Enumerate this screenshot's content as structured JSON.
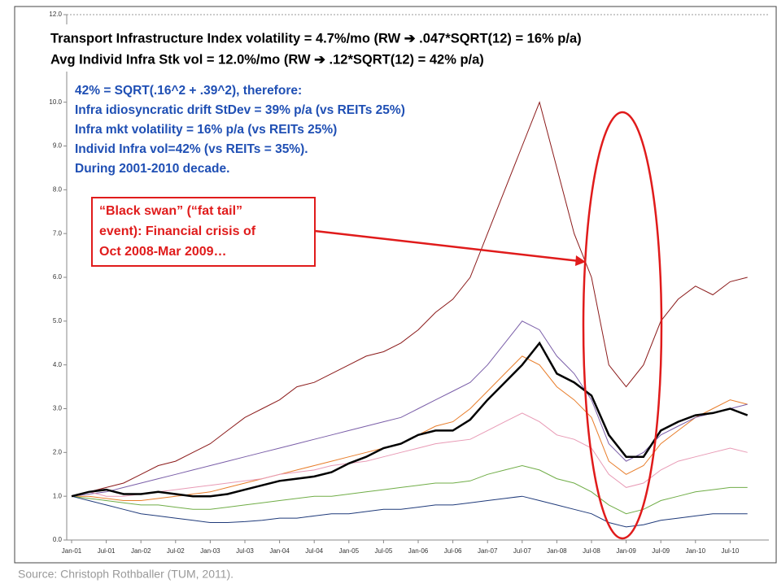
{
  "chart_data": {
    "type": "line",
    "titles": [
      "Transport Infrastructure Index volatility = 4.7%/mo (RW ➔ .047*SQRT(12) = 16% p/a)",
      "Avg Individ Infra Stk vol = 12.0%/mo (RW ➔ .12*SQRT(12) = 42% p/a)"
    ],
    "notes": [
      "42% = SQRT(.16^2 + .39^2), therefore:",
      "Infra idiosyncratic drift StDev = 39% p/a (vs REITs 25%)",
      "Infra mkt volatility = 16% p/a (vs REITs 25%)",
      "Individ Infra vol=42% (vs REITs = 35%).",
      "During 2001-2010 decade."
    ],
    "callout": [
      "“Black swan” (“fat tail”",
      "event): Financial crisis of",
      "Oct 2008-Mar 2009…"
    ],
    "source": "Source: Christoph Rothballer (TUM, 2011).",
    "categories": [
      "Jan-01",
      null,
      "Jul-01",
      null,
      "Jan-02",
      null,
      "Jul-02",
      null,
      "Jan-03",
      null,
      "Jul-03",
      null,
      "Jan-04",
      null,
      "Jul-04",
      null,
      "Jan-05",
      null,
      "Jul-05",
      null,
      "Jan-06",
      null,
      "Jul-06",
      null,
      "Jan-07",
      null,
      "Jul-07",
      null,
      "Jan-08",
      null,
      "Jul-08",
      null,
      "Jan-09",
      null,
      "Jul-09",
      null,
      "Jan-10",
      null,
      "Jul-10",
      null
    ],
    "series": [
      {
        "color": "#8b1a1a",
        "values": [
          1.0,
          1.1,
          1.2,
          1.3,
          1.5,
          1.7,
          1.8,
          2.0,
          2.2,
          2.5,
          2.8,
          3.0,
          3.2,
          3.5,
          3.6,
          3.8,
          4.0,
          4.2,
          4.3,
          4.5,
          4.8,
          5.2,
          5.5,
          6.0,
          7.0,
          8.0,
          9.0,
          10.0,
          8.5,
          7.0,
          6.0,
          4.0,
          3.5,
          4.0,
          5.0,
          5.5,
          5.8,
          5.6,
          5.9,
          6.0
        ]
      },
      {
        "color": "#e87d2a",
        "values": [
          1.0,
          1.0,
          0.95,
          0.9,
          0.9,
          0.95,
          1.0,
          1.05,
          1.1,
          1.2,
          1.3,
          1.4,
          1.5,
          1.6,
          1.7,
          1.8,
          1.9,
          2.0,
          2.1,
          2.2,
          2.4,
          2.6,
          2.7,
          3.0,
          3.4,
          3.8,
          4.2,
          4.0,
          3.5,
          3.2,
          2.8,
          1.8,
          1.5,
          1.7,
          2.2,
          2.5,
          2.8,
          3.0,
          3.2,
          3.1
        ]
      },
      {
        "color": "#70ad47",
        "values": [
          1.0,
          0.95,
          0.9,
          0.85,
          0.8,
          0.8,
          0.75,
          0.7,
          0.7,
          0.75,
          0.8,
          0.85,
          0.9,
          0.95,
          1.0,
          1.0,
          1.05,
          1.1,
          1.15,
          1.2,
          1.25,
          1.3,
          1.3,
          1.35,
          1.5,
          1.6,
          1.7,
          1.6,
          1.4,
          1.3,
          1.1,
          0.8,
          0.6,
          0.7,
          0.9,
          1.0,
          1.1,
          1.15,
          1.2,
          1.2
        ]
      },
      {
        "color": "#1f3a7a",
        "values": [
          1.0,
          0.9,
          0.8,
          0.7,
          0.6,
          0.55,
          0.5,
          0.45,
          0.4,
          0.4,
          0.42,
          0.45,
          0.5,
          0.5,
          0.55,
          0.6,
          0.6,
          0.65,
          0.7,
          0.7,
          0.75,
          0.8,
          0.8,
          0.85,
          0.9,
          0.95,
          1.0,
          0.9,
          0.8,
          0.7,
          0.6,
          0.4,
          0.3,
          0.35,
          0.45,
          0.5,
          0.55,
          0.6,
          0.6,
          0.6
        ]
      },
      {
        "color": "#7a5ea8",
        "values": [
          1.0,
          1.05,
          1.1,
          1.2,
          1.3,
          1.4,
          1.5,
          1.6,
          1.7,
          1.8,
          1.9,
          2.0,
          2.1,
          2.2,
          2.3,
          2.4,
          2.5,
          2.6,
          2.7,
          2.8,
          3.0,
          3.2,
          3.4,
          3.6,
          4.0,
          4.5,
          5.0,
          4.8,
          4.2,
          3.8,
          3.2,
          2.2,
          1.8,
          2.0,
          2.4,
          2.6,
          2.8,
          2.9,
          3.0,
          3.1
        ]
      },
      {
        "color": "#e89ab5",
        "values": [
          1.0,
          1.1,
          1.0,
          1.0,
          1.05,
          1.1,
          1.15,
          1.2,
          1.25,
          1.3,
          1.35,
          1.4,
          1.5,
          1.55,
          1.6,
          1.7,
          1.75,
          1.8,
          1.9,
          2.0,
          2.1,
          2.2,
          2.25,
          2.3,
          2.5,
          2.7,
          2.9,
          2.7,
          2.4,
          2.3,
          2.1,
          1.5,
          1.2,
          1.3,
          1.6,
          1.8,
          1.9,
          2.0,
          2.1,
          2.0
        ]
      },
      {
        "color": "#000000",
        "line_width": 2.5,
        "values": [
          1.0,
          1.1,
          1.15,
          1.05,
          1.05,
          1.1,
          1.05,
          1.0,
          1.0,
          1.05,
          1.15,
          1.25,
          1.35,
          1.4,
          1.45,
          1.55,
          1.75,
          1.9,
          2.1,
          2.2,
          2.4,
          2.5,
          2.5,
          2.75,
          3.2,
          3.6,
          4.0,
          4.5,
          3.8,
          3.6,
          3.3,
          2.4,
          1.9,
          1.9,
          2.5,
          2.7,
          2.85,
          2.9,
          3.0,
          2.85
        ]
      }
    ],
    "ylim": [
      0,
      12
    ],
    "yticks": [
      {
        "value": 0,
        "label": "0.0"
      },
      {
        "value": 1,
        "label": "1.0"
      },
      {
        "value": 2,
        "label": "2.0"
      },
      {
        "value": 3,
        "label": "3.0"
      },
      {
        "value": 4,
        "label": "4.0"
      },
      {
        "value": 5,
        "label": "5.0"
      },
      {
        "value": 6,
        "label": "6.0"
      },
      {
        "value": 7,
        "label": "7.0"
      },
      {
        "value": 8,
        "label": "8.0"
      },
      {
        "value": 9,
        "label": "9.0"
      },
      {
        "value": 10,
        "label": "10.0"
      },
      {
        "value": 12,
        "label": "12.0"
      }
    ],
    "grid": false
  }
}
